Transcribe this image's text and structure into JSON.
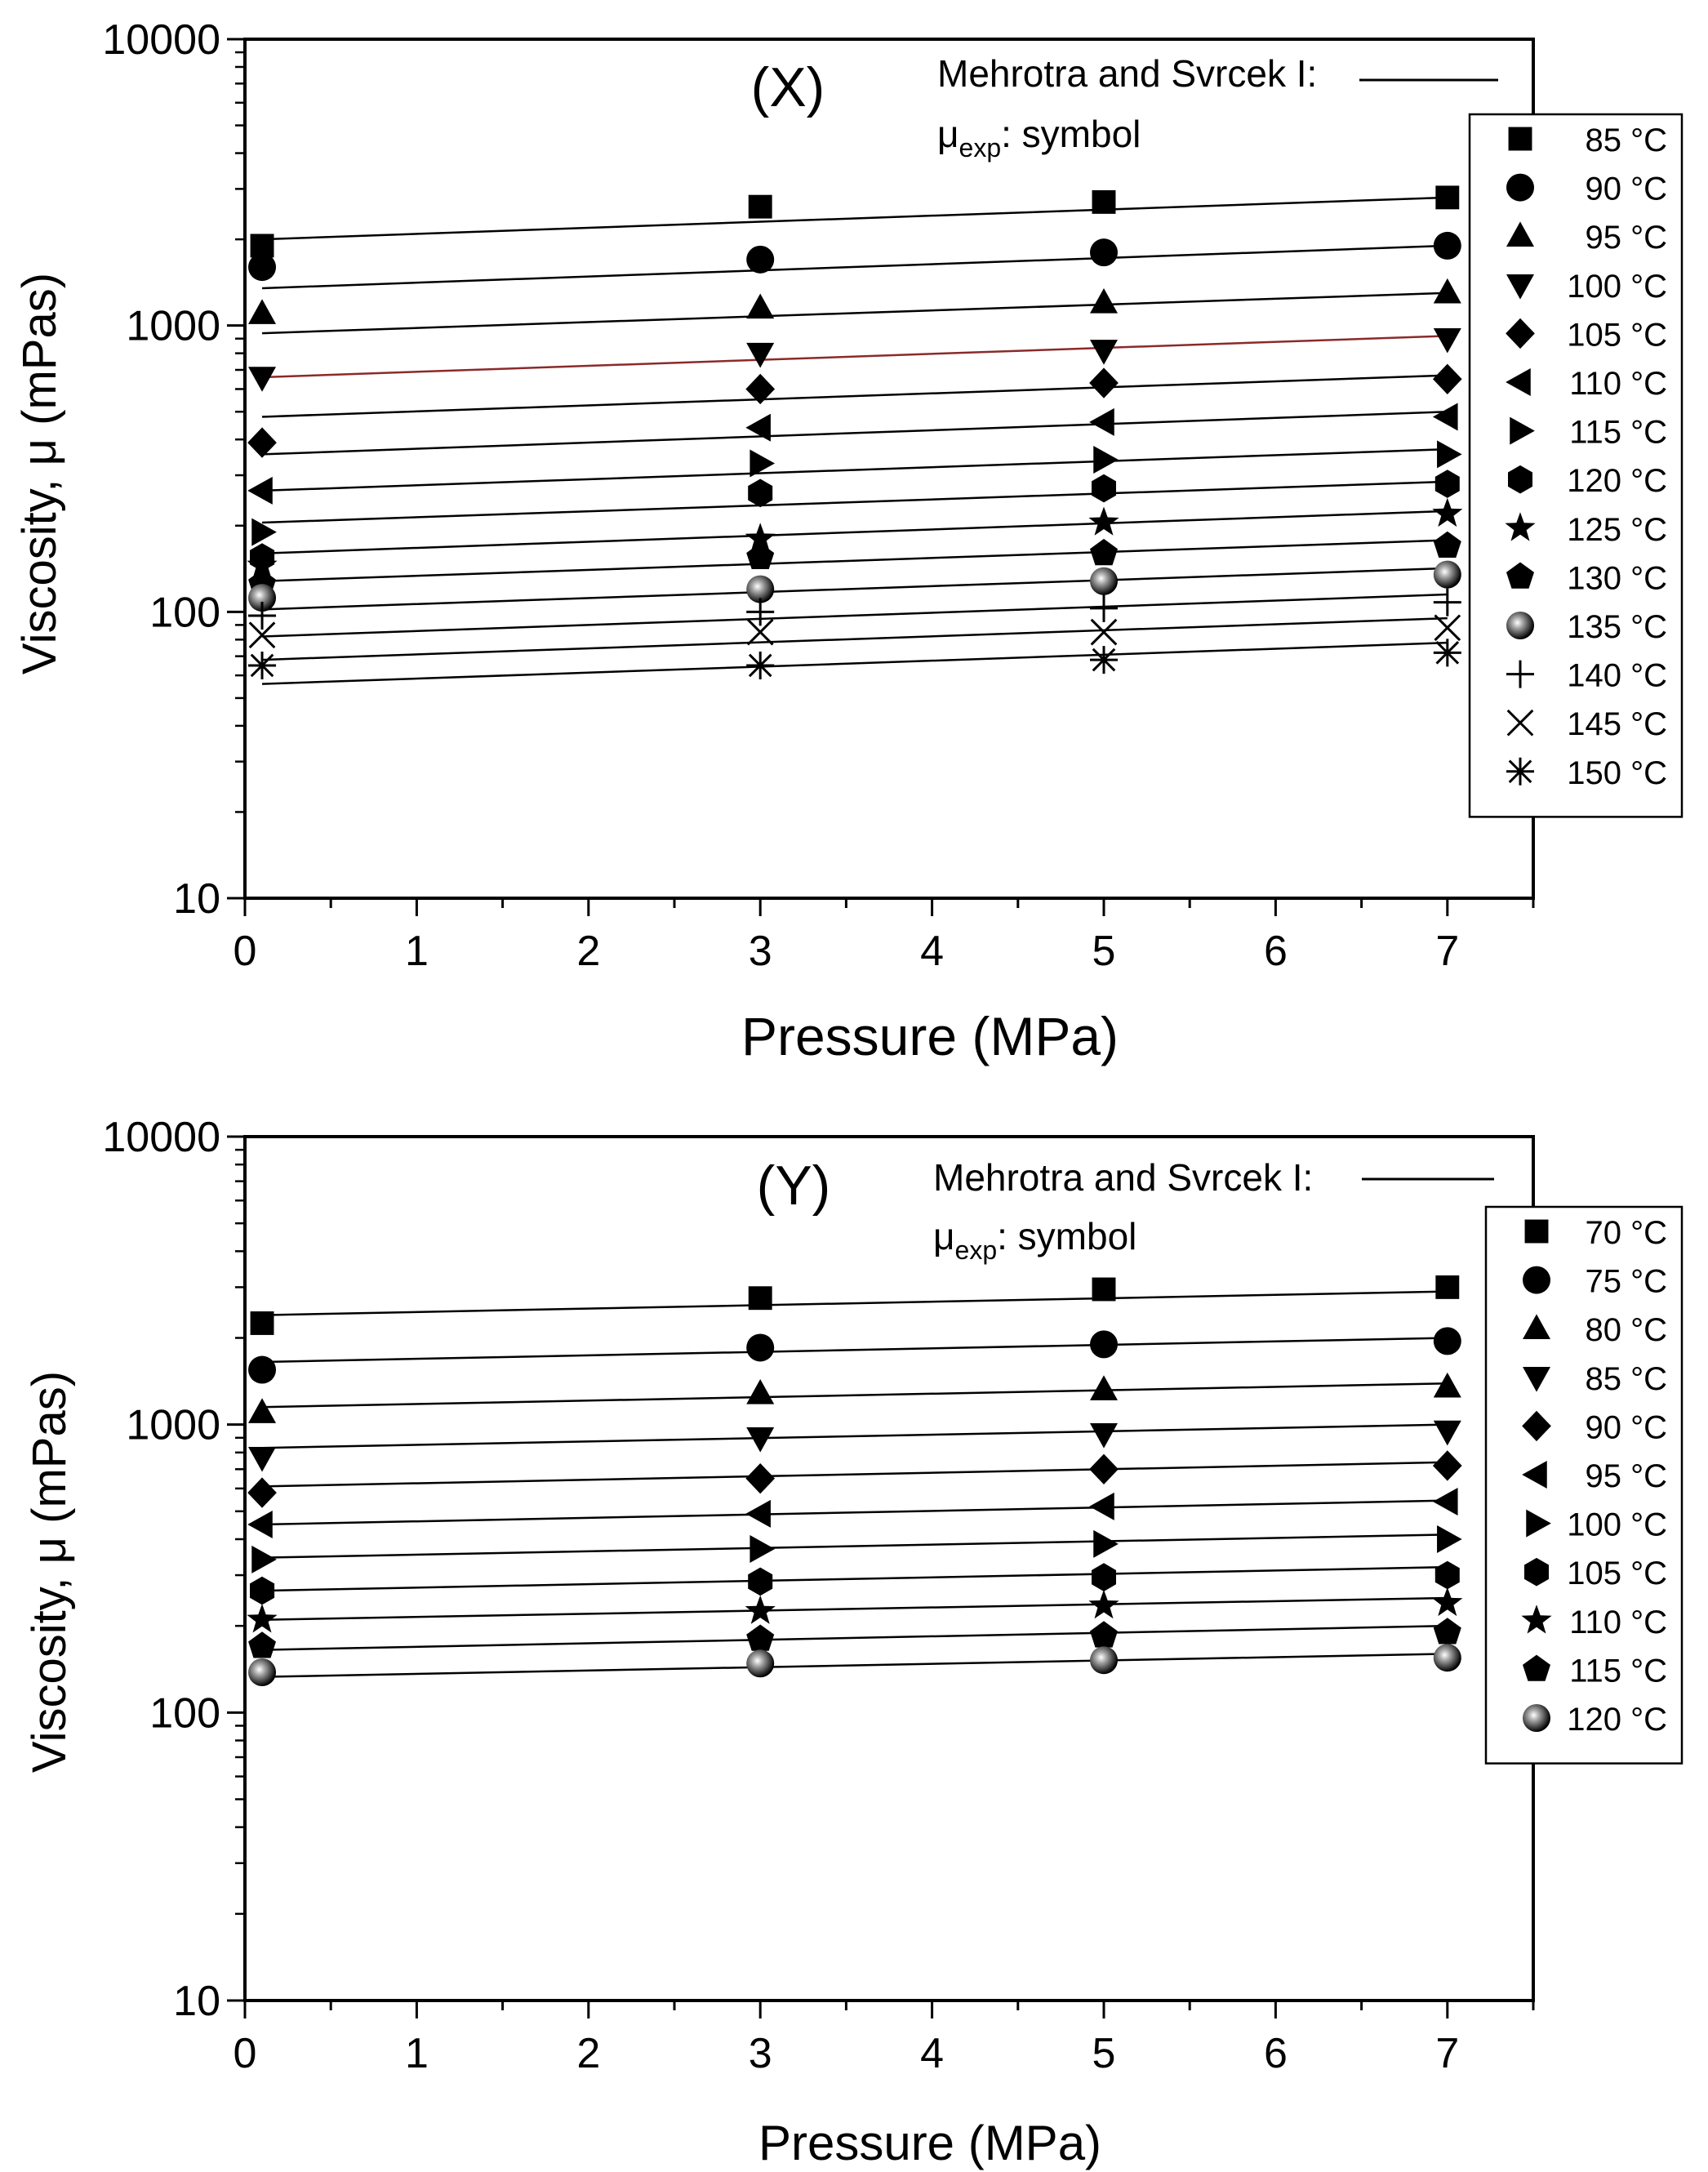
{
  "chart_data": [
    {
      "type": "line",
      "panel_label": "(X)",
      "xlabel": "Pressure (MPa)",
      "ylabel": "Viscosity, μ (mPas)",
      "yscale": "log",
      "xlim": [
        0,
        7.5
      ],
      "ylim": [
        10,
        10000
      ],
      "x_ticks": [
        "0",
        "1",
        "2",
        "3",
        "4",
        "5",
        "6",
        "7"
      ],
      "y_ticks": [
        "10",
        "100",
        "1000",
        "10000"
      ],
      "model_label": "Mehrotra and Svrcek I:",
      "exp_label_main": "μ",
      "exp_label_sub": "exp",
      "exp_label_rest": ": symbol",
      "x": [
        0.1,
        3,
        5,
        7
      ],
      "series": [
        {
          "name": "85 °C",
          "marker": "square",
          "values": [
            1900,
            2600,
            2700,
            2800
          ],
          "fit": [
            2000,
            2800
          ]
        },
        {
          "name": "90 °C",
          "marker": "circle",
          "values": [
            1600,
            1700,
            1800,
            1900
          ],
          "fit": [
            1350,
            1900
          ]
        },
        {
          "name": "95 °C",
          "marker": "triangle-up",
          "values": [
            1100,
            1150,
            1200,
            1300
          ],
          "fit": [
            940,
            1300
          ]
        },
        {
          "name": "100 °C",
          "marker": "triangle-down",
          "values": [
            660,
            800,
            820,
            900
          ],
          "fit": [
            660,
            920
          ],
          "fit_color": "#8b2a2a"
        },
        {
          "name": "105 °C",
          "marker": "diamond",
          "values": [
            390,
            600,
            630,
            650
          ],
          "fit": [
            480,
            670
          ]
        },
        {
          "name": "110 °C",
          "marker": "triangle-left",
          "values": [
            265,
            440,
            460,
            480
          ],
          "fit": [
            355,
            500
          ]
        },
        {
          "name": "115 °C",
          "marker": "triangle-right",
          "values": [
            190,
            330,
            340,
            355
          ],
          "fit": [
            265,
            370
          ]
        },
        {
          "name": "120 °C",
          "marker": "hexagon",
          "values": [
            155,
            260,
            270,
            280
          ],
          "fit": [
            205,
            285
          ]
        },
        {
          "name": "125 °C",
          "marker": "star",
          "values": [
            145,
            180,
            205,
            220
          ],
          "fit": [
            160,
            225
          ]
        },
        {
          "name": "130 °C",
          "marker": "pentagon",
          "values": [
            125,
            155,
            160,
            170
          ],
          "fit": [
            128,
            178
          ]
        },
        {
          "name": "135 °C",
          "marker": "sphere",
          "values": [
            112,
            120,
            128,
            135
          ],
          "fit": [
            102,
            142
          ]
        },
        {
          "name": "140 °C",
          "marker": "plus",
          "values": [
            97,
            100,
            103,
            108
          ],
          "fit": [
            82,
            115
          ]
        },
        {
          "name": "145 °C",
          "marker": "x",
          "values": [
            83,
            85,
            85,
            88
          ],
          "fit": [
            68,
            95
          ]
        },
        {
          "name": "150 °C",
          "marker": "asterisk",
          "values": [
            65,
            65,
            68,
            72
          ],
          "fit": [
            56,
            78
          ]
        }
      ]
    },
    {
      "type": "line",
      "panel_label": "(Y)",
      "xlabel": "Pressure (MPa)",
      "ylabel": "Viscosity, μ (mPas)",
      "yscale": "log",
      "xlim": [
        0,
        7.5
      ],
      "ylim": [
        10,
        10000
      ],
      "x_ticks": [
        "0",
        "1",
        "2",
        "3",
        "4",
        "5",
        "6",
        "7"
      ],
      "y_ticks": [
        "10",
        "100",
        "1000",
        "10000"
      ],
      "model_label": "Mehrotra and Svrcek I:",
      "exp_label_main": "μ",
      "exp_label_sub": "exp",
      "exp_label_rest": ": symbol",
      "x": [
        0.1,
        3,
        5,
        7
      ],
      "series": [
        {
          "name": "70 °C",
          "marker": "square",
          "values": [
            2250,
            2750,
            2950,
            3000
          ],
          "fit": [
            2400,
            2900
          ]
        },
        {
          "name": "75 °C",
          "marker": "circle",
          "values": [
            1550,
            1850,
            1900,
            1950
          ],
          "fit": [
            1650,
            2000
          ]
        },
        {
          "name": "80 °C",
          "marker": "triangle-up",
          "values": [
            1100,
            1280,
            1320,
            1350
          ],
          "fit": [
            1150,
            1390
          ]
        },
        {
          "name": "85 °C",
          "marker": "triangle-down",
          "values": [
            770,
            900,
            930,
            950
          ],
          "fit": [
            830,
            1000
          ]
        },
        {
          "name": "90 °C",
          "marker": "diamond",
          "values": [
            580,
            650,
            700,
            720
          ],
          "fit": [
            610,
            740
          ]
        },
        {
          "name": "95 °C",
          "marker": "triangle-left",
          "values": [
            450,
            490,
            520,
            540
          ],
          "fit": [
            450,
            545
          ]
        },
        {
          "name": "100 °C",
          "marker": "triangle-right",
          "values": [
            340,
            370,
            385,
            400
          ],
          "fit": [
            345,
            415
          ]
        },
        {
          "name": "105 °C",
          "marker": "hexagon",
          "values": [
            265,
            285,
            295,
            300
          ],
          "fit": [
            265,
            320
          ]
        },
        {
          "name": "110 °C",
          "marker": "star",
          "values": [
            210,
            225,
            235,
            240
          ],
          "fit": [
            210,
            250
          ]
        },
        {
          "name": "115 °C",
          "marker": "pentagon",
          "values": [
            170,
            180,
            185,
            190
          ],
          "fit": [
            165,
            200
          ]
        },
        {
          "name": "120 °C",
          "marker": "sphere",
          "values": [
            138,
            148,
            152,
            155
          ],
          "fit": [
            133,
            160
          ]
        }
      ]
    }
  ]
}
